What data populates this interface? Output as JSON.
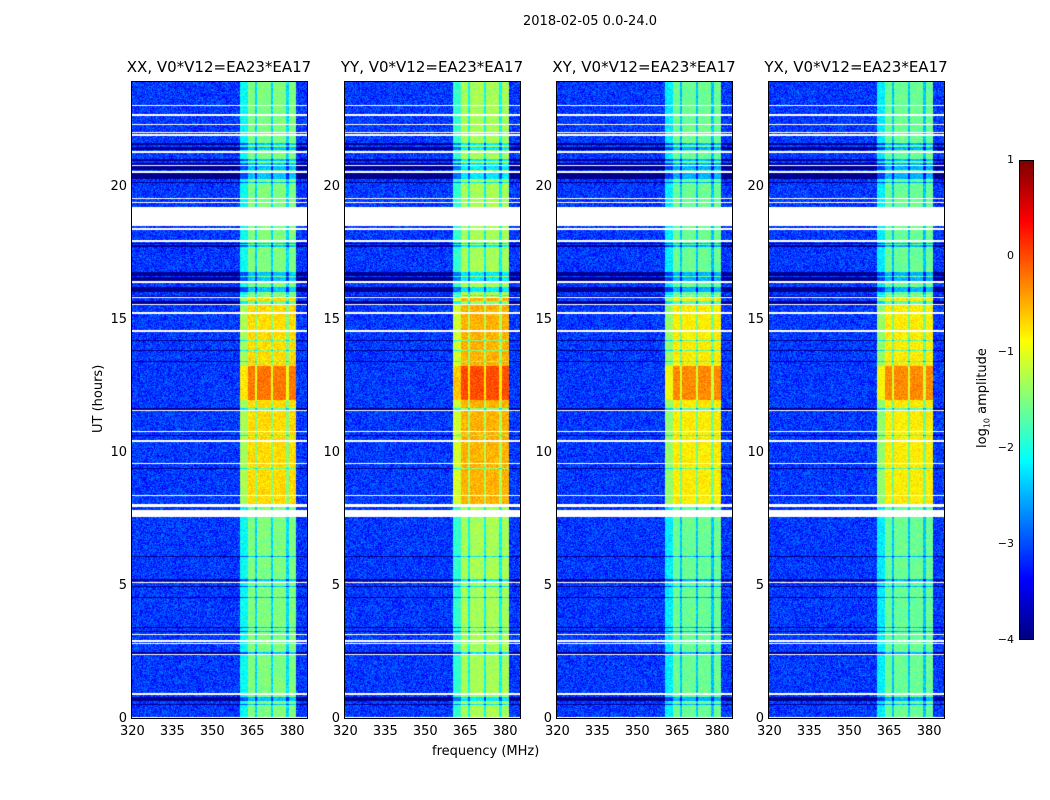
{
  "figure_title": "2018-02-05 0.0-24.0",
  "chart_data": {
    "type": "heatmap",
    "title": "2018-02-05 0.0-24.0",
    "xlabel": "frequency (MHz)",
    "ylabel": "UT (hours)",
    "xlim": [
      320,
      386.5
    ],
    "ylim": [
      0,
      24
    ],
    "xticks": [
      "320",
      "335",
      "350",
      "365",
      "380"
    ],
    "xtick_values": [
      320,
      335,
      350,
      365,
      380
    ],
    "yticks": [
      "0",
      "5",
      "10",
      "15",
      "20"
    ],
    "ytick_values": [
      0,
      5,
      10,
      15,
      20
    ],
    "panels": [
      {
        "title": "XX, V0*V12=EA23*EA17",
        "band_level": -1.5
      },
      {
        "title": "YY, V0*V12=EA23*EA17",
        "band_level": -1.3
      },
      {
        "title": "XY, V0*V12=EA23*EA17",
        "band_level": -1.6
      },
      {
        "title": "YX, V0*V12=EA23*EA17",
        "band_level": -1.6
      }
    ],
    "background_level": -3.1,
    "band_MHz": [
      361,
      382
    ],
    "band_dark_stripes_MHz": [
      367,
      373,
      379
    ],
    "bright_period_hours": [
      8,
      16
    ],
    "peak_period_hours": [
      12,
      13.3
    ],
    "flagged_blank_hours": [
      [
        18.6,
        19.3
      ],
      [
        7.6,
        7.85
      ],
      [
        7.95,
        8.05
      ]
    ],
    "dark_rows_hours": [
      [
        6.45,
        6.6
      ],
      [
        20.3,
        21.1
      ],
      [
        15.6,
        16.8
      ],
      [
        0.5,
        0.8
      ]
    ],
    "colorbar": {
      "label_main": "log",
      "label_sub": "10",
      "label_rest": " amplitude",
      "ticks": [
        "1",
        "0",
        "−1",
        "−2",
        "−3",
        "−4"
      ],
      "tick_values": [
        1,
        0,
        -1,
        -2,
        -3,
        -4
      ],
      "range": [
        -4,
        1
      ],
      "colormap": "jet"
    }
  }
}
